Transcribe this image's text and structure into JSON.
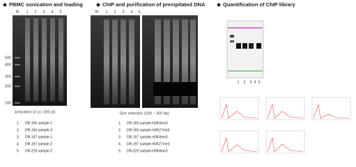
{
  "panels": [
    {
      "title": "PBMC sonication and loading",
      "lanes": [
        "M",
        "1",
        "2",
        "3",
        "4",
        "5"
      ],
      "ladder": [
        "500",
        "400",
        "300",
        "200",
        "100"
      ],
      "caption": "sonication (2 ul / 200 ul)",
      "samples": [
        {
          "num": "1.",
          "text": "DR-165 sample-1"
        },
        {
          "num": "2.",
          "text": "DR-165 sample-3"
        },
        {
          "num": "3.",
          "text": "DR-197 sample-1"
        },
        {
          "num": "4.",
          "text": "DR-197 sample-2"
        },
        {
          "num": "5.",
          "text": "DR-229 sample-2"
        }
      ]
    },
    {
      "title": "ChIP and purification of precipitated DNA",
      "lanes": [
        "M",
        "1",
        "2",
        "3",
        "4",
        "5"
      ],
      "caption": "Size selection (200 ~ 350 bp)",
      "samples": [
        {
          "num": "1.",
          "text": "DR-165 sample-H3K4me3"
        },
        {
          "num": "2.",
          "text": "DR-165 sample-H3K27me3"
        },
        {
          "num": "3.",
          "text": "DR-197 sample-H3K4me3"
        },
        {
          "num": "4.",
          "text": "DR-197 sample-H3K27me3"
        },
        {
          "num": "5.",
          "text": "DR-229 sample-H3K4me3"
        }
      ]
    },
    {
      "title": "Quantification of ChIP library",
      "lanes": [
        "1",
        "2",
        "3",
        "4",
        "5"
      ]
    }
  ]
}
